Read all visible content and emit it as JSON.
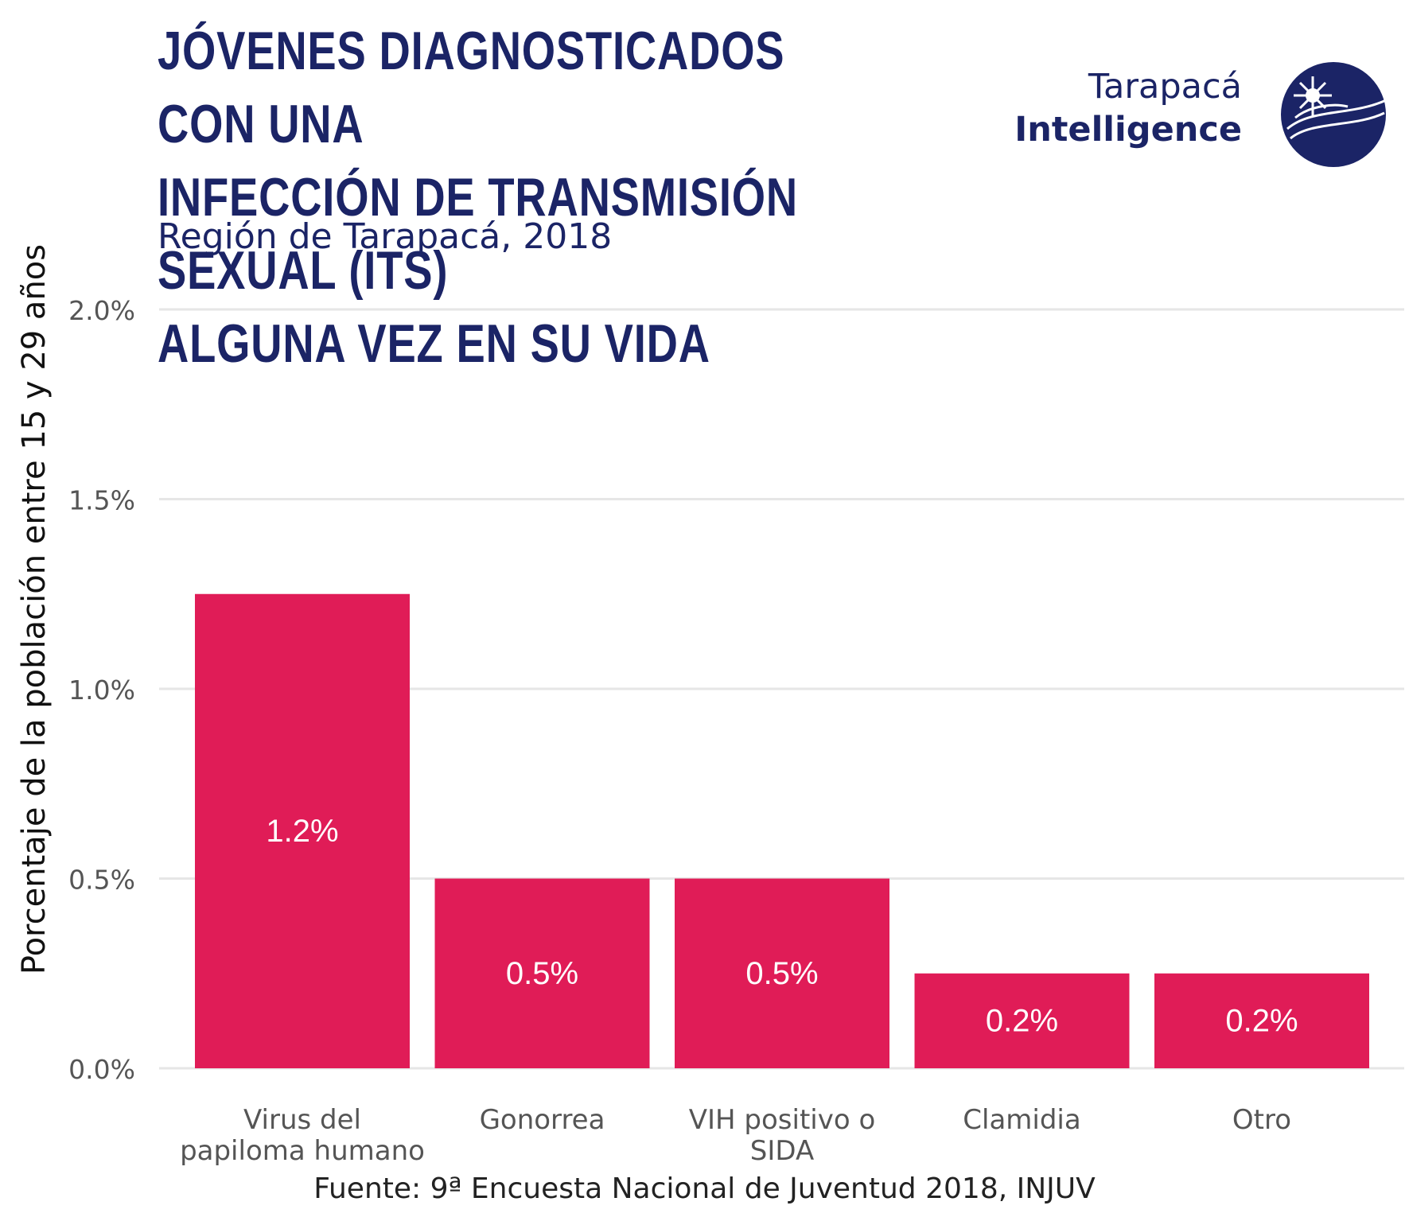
{
  "header": {
    "title_lines": [
      "JÓVENES DIAGNOSTICADOS CON UNA",
      "INFECCIÓN DE TRANSMISIÓN SEXUAL (ITS)",
      "ALGUNA VEZ EN SU VIDA"
    ],
    "subtitle": "Región de Tarapacá, 2018"
  },
  "brand": {
    "line1": "Tarapacá",
    "line2": "Intelligence",
    "logo_icon": "globe-compass-icon",
    "color": "#1b2466"
  },
  "source": "Fuente: 9ª Encuesta Nacional de Juventud 2018, INJUV",
  "colors": {
    "bar": "#e01c57",
    "grid": "#e6e6e6",
    "title": "#1b2466",
    "tick_text": "#555555",
    "bar_label": "#ffffff"
  },
  "chart_data": {
    "type": "bar",
    "categories": [
      [
        "Virus del",
        "papiloma humano"
      ],
      [
        "Gonorrea"
      ],
      [
        "VIH positivo o",
        "SIDA"
      ],
      [
        "Clamidia"
      ],
      [
        "Otro"
      ]
    ],
    "values": [
      1.25,
      0.5,
      0.5,
      0.25,
      0.25
    ],
    "data_labels": [
      "1.2%",
      "0.5%",
      "0.5%",
      "0.2%",
      "0.2%"
    ],
    "ylabel": "Porcentaje de la población entre 15 y 29 años",
    "xlabel": "",
    "ylim": [
      0,
      2.0
    ],
    "yticks": [
      0,
      0.5,
      1.0,
      1.5,
      2.0
    ],
    "ytick_labels": [
      "0.0%",
      "0.5%",
      "1.0%",
      "1.5%",
      "2.0%"
    ],
    "grid": "horizontal"
  }
}
